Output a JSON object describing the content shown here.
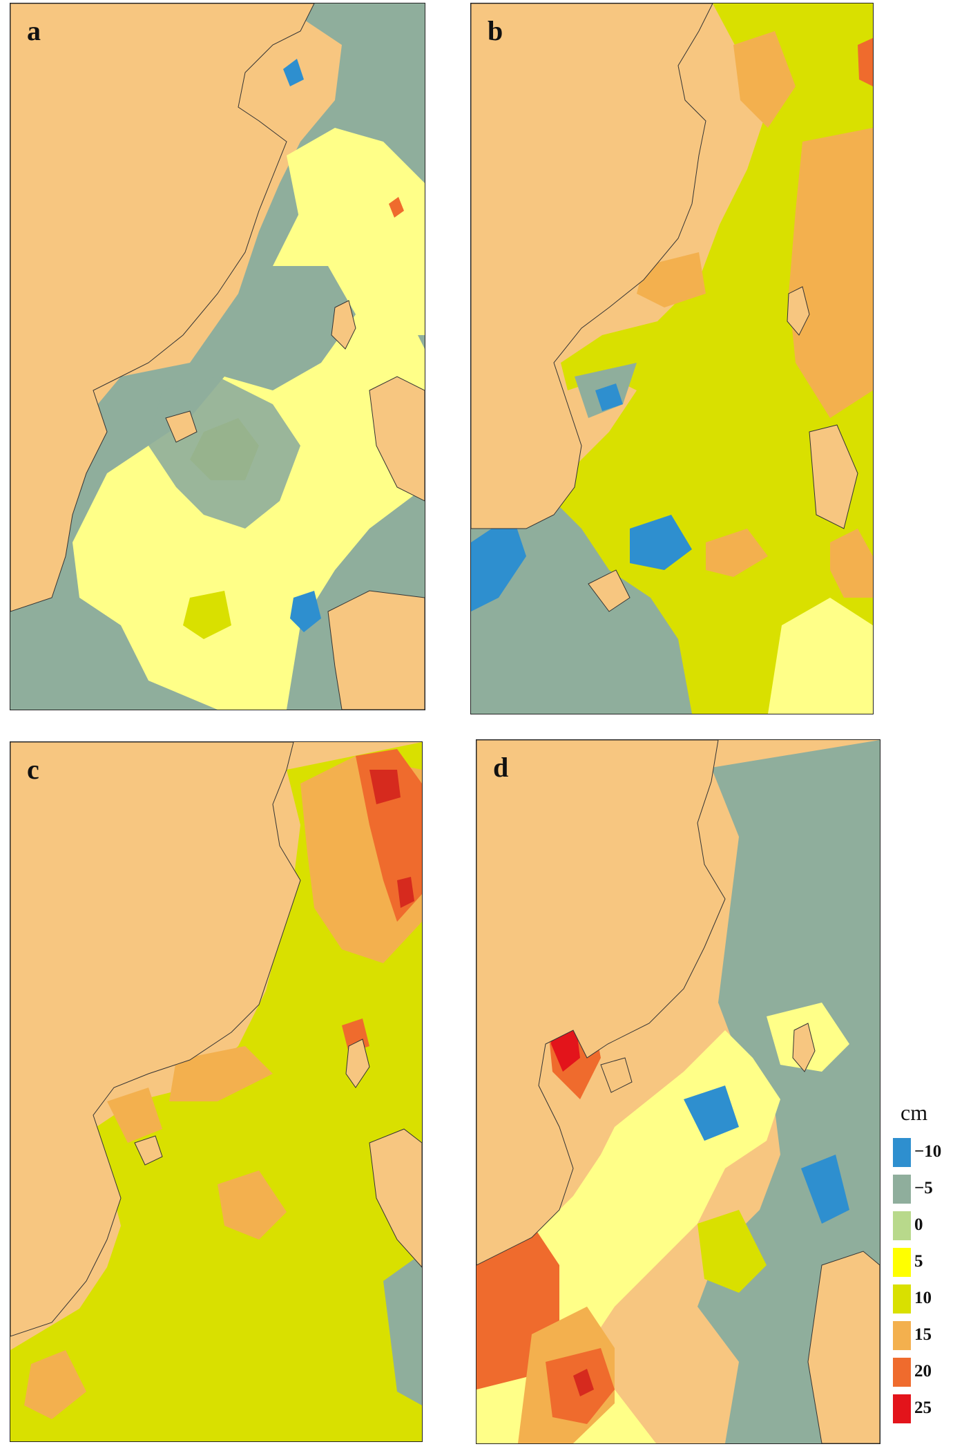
{
  "panels": [
    {
      "label": "a",
      "predominant_band": "-5 to 5",
      "dominant_colors": [
        "#8fae9c",
        "#ffff88",
        "#d9e000",
        "#2e8fcf"
      ]
    },
    {
      "label": "b",
      "predominant_band": "5 to 15",
      "dominant_colors": [
        "#d9e000",
        "#f3b04e",
        "#2e8fcf",
        "#ef6b2d"
      ]
    },
    {
      "label": "c",
      "predominant_band": "5 to 20",
      "dominant_colors": [
        "#d9e000",
        "#f3b04e",
        "#ef6b2d",
        "#d62a1e"
      ]
    },
    {
      "label": "d",
      "predominant_band": "-5 to 25",
      "dominant_colors": [
        "#8fae9c",
        "#ffff88",
        "#ef6b2d",
        "#e3141b"
      ]
    }
  ],
  "land_color": "#f7c680",
  "legend": {
    "unit": "cm",
    "levels": [
      {
        "label": "−10",
        "color": "#2e8fcf"
      },
      {
        "label": "−5",
        "color": "#8fae9c"
      },
      {
        "label": "0",
        "color": "#b8d98b"
      },
      {
        "label": "5",
        "color": "#ffff00"
      },
      {
        "label": "10",
        "color": "#d9e000"
      },
      {
        "label": "15",
        "color": "#f3b04e"
      },
      {
        "label": "20",
        "color": "#ef6b2d"
      },
      {
        "label": "25",
        "color": "#e3141b"
      }
    ]
  }
}
